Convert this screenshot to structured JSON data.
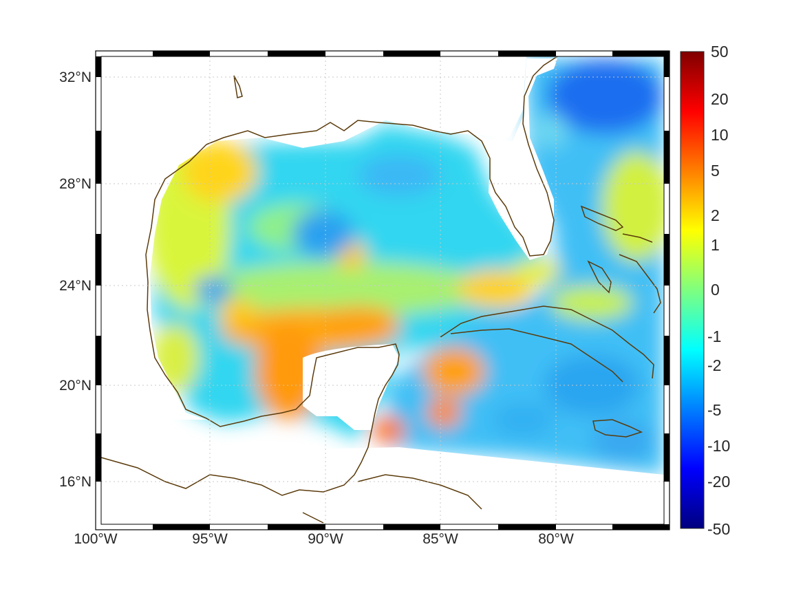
{
  "map": {
    "longitude_labels": [
      "100°W",
      "95°W",
      "90°W",
      "85°W",
      "80°W"
    ],
    "latitude_labels": [
      "32°N",
      "28°N",
      "24°N",
      "20°N",
      "16°N"
    ],
    "extent": {
      "lon_min": -100,
      "lon_max": -75,
      "lat_min": 14.2,
      "lat_max": 33
    },
    "grid": "dotted",
    "coastline_color": "#5a3a0a"
  },
  "colorbar": {
    "tick_labels": [
      "50",
      "20",
      "10",
      "5",
      "2",
      "1",
      "0",
      "-1",
      "-2",
      "-5",
      "-10",
      "-20",
      "-50"
    ],
    "colormap": "jet",
    "position": "right"
  }
}
